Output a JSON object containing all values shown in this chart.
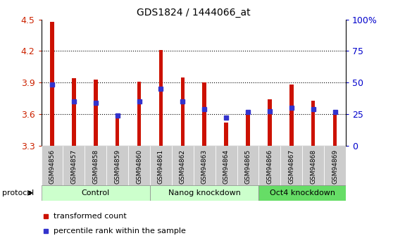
{
  "title": "GDS1824 / 1444066_at",
  "samples": [
    "GSM94856",
    "GSM94857",
    "GSM94858",
    "GSM94859",
    "GSM94860",
    "GSM94861",
    "GSM94862",
    "GSM94863",
    "GSM94864",
    "GSM94865",
    "GSM94866",
    "GSM94867",
    "GSM94868",
    "GSM94869"
  ],
  "bar_values": [
    4.48,
    3.94,
    3.93,
    3.59,
    3.91,
    4.21,
    3.95,
    3.9,
    3.52,
    3.62,
    3.74,
    3.88,
    3.73,
    3.64
  ],
  "percentile_values": [
    3.88,
    3.72,
    3.71,
    3.59,
    3.72,
    3.84,
    3.72,
    3.65,
    3.57,
    3.62,
    3.63,
    3.66,
    3.65,
    3.62
  ],
  "bar_color": "#cc1100",
  "percentile_color": "#3333cc",
  "ymin": 3.3,
  "ymax": 4.5,
  "yticks": [
    3.3,
    3.6,
    3.9,
    4.2,
    4.5
  ],
  "ytick_labels": [
    "3.3",
    "3.6",
    "3.9",
    "4.2",
    "4.5"
  ],
  "right_yticks": [
    0,
    25,
    50,
    75,
    100
  ],
  "right_ytick_labels": [
    "0",
    "25",
    "50",
    "75",
    "100%"
  ],
  "groups": [
    {
      "label": "Control",
      "start": 0,
      "end": 5,
      "color": "#ccffcc"
    },
    {
      "label": "Nanog knockdown",
      "start": 5,
      "end": 10,
      "color": "#ccffcc"
    },
    {
      "label": "Oct4 knockdown",
      "start": 10,
      "end": 14,
      "color": "#66dd66"
    }
  ],
  "protocol_label": "protocol",
  "legend_bar_label": "transformed count",
  "legend_pct_label": "percentile rank within the sample",
  "tick_color_left": "#cc2200",
  "tick_color_right": "#0000cc",
  "background_color": "#ffffff",
  "bar_width": 0.18,
  "xtick_bg": "#cccccc"
}
